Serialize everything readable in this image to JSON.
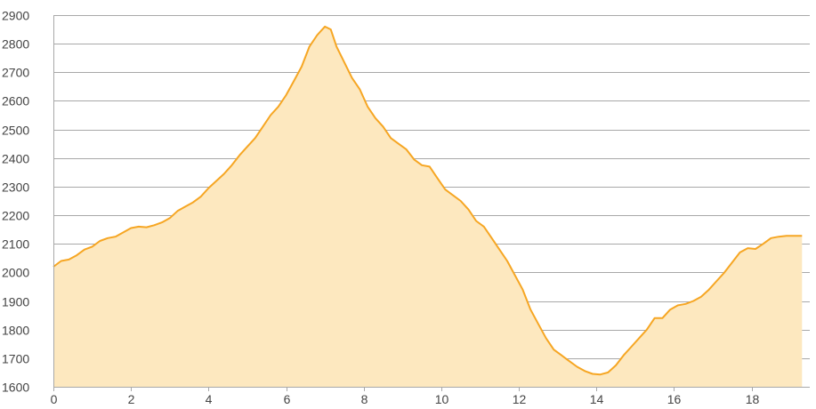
{
  "chart_data": {
    "type": "area",
    "title": "",
    "xlabel": "",
    "ylabel": "",
    "xlim": [
      0,
      19.5
    ],
    "ylim": [
      1600,
      2900
    ],
    "grid": true,
    "legend": "none",
    "x_ticks": [
      0,
      2,
      4,
      6,
      8,
      10,
      12,
      14,
      16,
      18
    ],
    "x_tick_labels": [
      "0",
      "2",
      "4",
      "6",
      "8",
      "10",
      "12",
      "14",
      "16",
      "18"
    ],
    "y_ticks": [
      1600,
      1700,
      1800,
      1900,
      2000,
      2100,
      2200,
      2300,
      2400,
      2500,
      2600,
      2700,
      2800,
      2900
    ],
    "y_tick_labels": [
      "1600",
      "1700",
      "1800",
      "1900",
      "2000",
      "2100",
      "2200",
      "2300",
      "2400",
      "2500",
      "2600",
      "2700",
      "2800",
      "2900"
    ],
    "colors": {
      "line": "#f6a623",
      "fill": "#fde8bf",
      "grid": "#a8a8a8"
    },
    "series": [
      {
        "x": [
          0,
          0.2,
          0.4,
          0.6,
          0.8,
          1.0,
          1.2,
          1.4,
          1.6,
          1.8,
          2.0,
          2.2,
          2.4,
          2.6,
          2.8,
          3.0,
          3.2,
          3.4,
          3.6,
          3.8,
          4.0,
          4.2,
          4.4,
          4.6,
          4.8,
          5.0,
          5.2,
          5.4,
          5.6,
          5.8,
          6.0,
          6.2,
          6.4,
          6.6,
          6.8,
          7.0,
          7.15,
          7.3,
          7.5,
          7.7,
          7.9,
          8.1,
          8.3,
          8.5,
          8.7,
          8.9,
          9.1,
          9.3,
          9.5,
          9.7,
          9.9,
          10.1,
          10.3,
          10.5,
          10.7,
          10.9,
          11.1,
          11.3,
          11.5,
          11.7,
          11.9,
          12.1,
          12.3,
          12.5,
          12.7,
          12.9,
          13.1,
          13.3,
          13.5,
          13.7,
          13.9,
          14.1,
          14.3,
          14.5,
          14.7,
          14.9,
          15.1,
          15.3,
          15.5,
          15.7,
          15.9,
          16.1,
          16.3,
          16.5,
          16.7,
          16.9,
          17.1,
          17.3,
          17.5,
          17.7,
          17.9,
          18.1,
          18.3,
          18.5,
          18.7,
          18.9,
          19.1,
          19.3
        ],
        "y": [
          2020,
          2040,
          2045,
          2060,
          2080,
          2090,
          2110,
          2120,
          2125,
          2140,
          2155,
          2160,
          2158,
          2165,
          2175,
          2190,
          2215,
          2230,
          2245,
          2265,
          2295,
          2320,
          2345,
          2375,
          2410,
          2440,
          2470,
          2510,
          2550,
          2580,
          2620,
          2670,
          2720,
          2790,
          2830,
          2860,
          2850,
          2790,
          2735,
          2680,
          2640,
          2580,
          2540,
          2510,
          2470,
          2450,
          2430,
          2395,
          2375,
          2370,
          2330,
          2290,
          2270,
          2250,
          2220,
          2180,
          2160,
          2120,
          2080,
          2040,
          1990,
          1940,
          1870,
          1820,
          1770,
          1730,
          1710,
          1690,
          1670,
          1655,
          1645,
          1643,
          1650,
          1675,
          1710,
          1740,
          1770,
          1800,
          1840,
          1840,
          1870,
          1885,
          1890,
          1900,
          1915,
          1940,
          1970,
          2000,
          2035,
          2070,
          2085,
          2082,
          2100,
          2120,
          2125,
          2128,
          2128,
          2128
        ]
      }
    ]
  }
}
